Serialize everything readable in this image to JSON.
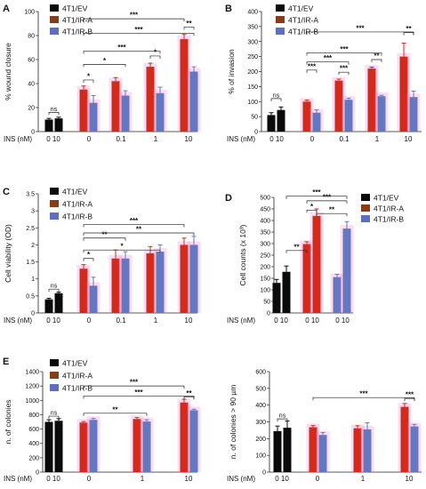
{
  "colors": {
    "ev": "#0a0a0a",
    "ira": "#d42a1c",
    "irb": "#6478c2",
    "ira_legend": "#8a3b14",
    "irb_legend": "#5c6fc0",
    "glow": "#ff7fd8"
  },
  "chart_data": [
    {
      "panel": "A",
      "type": "bar",
      "ylabel": "% wound closure",
      "ylim": [
        0,
        100
      ],
      "yticks": [
        0,
        20,
        40,
        60,
        80,
        100
      ],
      "xlabel_prefix": "INS (nM)",
      "legend": [
        "4T1/EV",
        "4T1/IR-A",
        "4T1/IR-B"
      ],
      "groups": [
        {
          "label": "0 10",
          "bars": [
            {
              "series": "4T1/EV",
              "value": 10,
              "err": 1
            },
            {
              "series": "4T1/EV",
              "value": 11,
              "err": 1
            }
          ]
        },
        {
          "label": "0",
          "bars": [
            {
              "series": "4T1/IR-A",
              "value": 35,
              "err": 3
            },
            {
              "series": "4T1/IR-B",
              "value": 24,
              "err": 6
            }
          ]
        },
        {
          "label": "0.1",
          "bars": [
            {
              "series": "4T1/IR-A",
              "value": 42,
              "err": 3
            },
            {
              "series": "4T1/IR-B",
              "value": 30,
              "err": 4
            }
          ]
        },
        {
          "label": "1",
          "bars": [
            {
              "series": "4T1/IR-A",
              "value": 54,
              "err": 3
            },
            {
              "series": "4T1/IR-B",
              "value": 32,
              "err": 5
            }
          ]
        },
        {
          "label": "10",
          "bars": [
            {
              "series": "4T1/IR-A",
              "value": 77,
              "err": 4
            },
            {
              "series": "4T1/IR-B",
              "value": 50,
              "err": 4
            }
          ]
        }
      ],
      "annotations": [
        "ns",
        "*",
        "*",
        "*",
        "***",
        "***",
        "***",
        "**"
      ]
    },
    {
      "panel": "B",
      "type": "bar",
      "ylabel": "% of invasion",
      "ylim": [
        0,
        400
      ],
      "yticks": [
        0,
        50,
        100,
        150,
        200,
        250,
        300,
        350,
        400
      ],
      "xlabel_prefix": "INS (nM)",
      "legend": [
        "4T1/EV",
        "4T1/IR-A",
        "4T1/IR-B"
      ],
      "groups": [
        {
          "label": "0 10",
          "bars": [
            {
              "series": "4T1/EV",
              "value": 55,
              "err": 8
            },
            {
              "series": "4T1/EV",
              "value": 72,
              "err": 10
            }
          ]
        },
        {
          "label": "0",
          "bars": [
            {
              "series": "4T1/IR-A",
              "value": 100,
              "err": 5
            },
            {
              "series": "4T1/IR-B",
              "value": 63,
              "err": 10
            }
          ]
        },
        {
          "label": "0.1",
          "bars": [
            {
              "series": "4T1/IR-A",
              "value": 170,
              "err": 5
            },
            {
              "series": "4T1/IR-B",
              "value": 106,
              "err": 5
            }
          ]
        },
        {
          "label": "1",
          "bars": [
            {
              "series": "4T1/IR-A",
              "value": 210,
              "err": 5
            },
            {
              "series": "4T1/IR-B",
              "value": 118,
              "err": 3
            }
          ]
        },
        {
          "label": "10",
          "bars": [
            {
              "series": "4T1/IR-A",
              "value": 250,
              "err": 45
            },
            {
              "series": "4T1/IR-B",
              "value": 115,
              "err": 20
            }
          ]
        }
      ],
      "annotations": [
        "ns",
        "***",
        "***",
        "***",
        "***",
        "**",
        "***",
        "**"
      ]
    },
    {
      "panel": "C",
      "type": "bar",
      "ylabel": "Cell viability (OD)",
      "ylim": [
        0,
        3.5
      ],
      "yticks": [
        0,
        0.5,
        1,
        1.5,
        2,
        2.5,
        3,
        3.5
      ],
      "xlabel_prefix": "INS (nM)",
      "legend": [
        "4T1/EV",
        "4T1/IR-A",
        "4T1/IR-B"
      ],
      "groups": [
        {
          "label": "0 10",
          "bars": [
            {
              "series": "4T1/EV",
              "value": 0.4,
              "err": 0.03
            },
            {
              "series": "4T1/EV",
              "value": 0.58,
              "err": 0.03
            }
          ]
        },
        {
          "label": "0",
          "bars": [
            {
              "series": "4T1/IR-A",
              "value": 1.3,
              "err": 0.12
            },
            {
              "series": "4T1/IR-B",
              "value": 0.8,
              "err": 0.25
            }
          ]
        },
        {
          "label": "0.1",
          "bars": [
            {
              "series": "4T1/IR-A",
              "value": 1.6,
              "err": 0.25
            },
            {
              "series": "4T1/IR-B",
              "value": 1.6,
              "err": 0.2
            }
          ]
        },
        {
          "label": "1",
          "bars": [
            {
              "series": "4T1/IR-A",
              "value": 1.75,
              "err": 0.2
            },
            {
              "series": "4T1/IR-B",
              "value": 1.8,
              "err": 0.2
            }
          ]
        },
        {
          "label": "10",
          "bars": [
            {
              "series": "4T1/IR-A",
              "value": 2.0,
              "err": 0.2
            },
            {
              "series": "4T1/IR-B",
              "value": 2.0,
              "err": 0.25
            }
          ]
        }
      ],
      "annotations": [
        "ns",
        "*",
        "*",
        "**",
        "**",
        "***"
      ]
    },
    {
      "panel": "D",
      "type": "bar",
      "ylabel": "Cell counts (x 10³)",
      "ylim": [
        0,
        500
      ],
      "yticks": [
        0,
        50,
        100,
        150,
        200,
        250,
        300,
        350,
        400,
        450,
        500
      ],
      "xlabel_prefix": "INS (nM)",
      "legend": [
        "4T1/EV",
        "4T1/IR-A",
        "4T1/IR-B"
      ],
      "groups": [
        {
          "label": "0 10",
          "bars": [
            {
              "series": "4T1/EV",
              "value": 130,
              "err": 15
            },
            {
              "series": "4T1/EV",
              "value": 178,
              "err": 25
            }
          ]
        },
        {
          "label": "0 10",
          "bars": [
            {
              "series": "4T1/IR-A",
              "value": 298,
              "err": 10
            },
            {
              "series": "4T1/IR-A",
              "value": 420,
              "err": 30
            }
          ]
        },
        {
          "label": "0 10",
          "bars": [
            {
              "series": "4T1/IR-B",
              "value": 155,
              "err": 12
            },
            {
              "series": "4T1/IR-B",
              "value": 365,
              "err": 30
            }
          ]
        }
      ],
      "annotations": [
        "**",
        "*",
        "**",
        "***",
        "***"
      ]
    },
    {
      "panel": "E",
      "type": "bar",
      "ylabel": "n. of colonies",
      "ylim": [
        0,
        1400
      ],
      "yticks": [
        0,
        200,
        400,
        600,
        800,
        1000,
        1200,
        1400
      ],
      "xlabel_prefix": "INS (nM)",
      "legend": [
        "4T1/EV",
        "4T1/IR-A",
        "4T1/IR-B"
      ],
      "groups": [
        {
          "label": "0 10",
          "bars": [
            {
              "series": "4T1/EV",
              "value": 700,
              "err": 30
            },
            {
              "series": "4T1/EV",
              "value": 715,
              "err": 30
            }
          ]
        },
        {
          "label": "0",
          "bars": [
            {
              "series": "4T1/IR-A",
              "value": 690,
              "err": 15
            },
            {
              "series": "4T1/IR-B",
              "value": 728,
              "err": 20
            }
          ]
        },
        {
          "label": "1",
          "bars": [
            {
              "series": "4T1/IR-A",
              "value": 740,
              "err": 20
            },
            {
              "series": "4T1/IR-B",
              "value": 705,
              "err": 25
            }
          ]
        },
        {
          "label": "10",
          "bars": [
            {
              "series": "4T1/IR-A",
              "value": 970,
              "err": 45
            },
            {
              "series": "4T1/IR-B",
              "value": 862,
              "err": 15
            }
          ]
        }
      ],
      "annotations": [
        "ns",
        "**",
        "***",
        "***",
        "**"
      ]
    },
    {
      "panel": "",
      "type": "bar",
      "ylabel": "n. of colonies > 90 µm",
      "ylim": [
        0,
        600
      ],
      "yticks": [
        0,
        100,
        200,
        300,
        400,
        500,
        600
      ],
      "xlabel_prefix": "INS (nM)",
      "legend": [],
      "groups": [
        {
          "label": "0 10",
          "bars": [
            {
              "series": "4T1/EV",
              "value": 245,
              "err": 30
            },
            {
              "series": "4T1/EV",
              "value": 265,
              "err": 40
            }
          ]
        },
        {
          "label": "0",
          "bars": [
            {
              "series": "4T1/IR-A",
              "value": 268,
              "err": 10
            },
            {
              "series": "4T1/IR-B",
              "value": 222,
              "err": 15
            }
          ]
        },
        {
          "label": "1",
          "bars": [
            {
              "series": "4T1/IR-A",
              "value": 262,
              "err": 15
            },
            {
              "series": "4T1/IR-B",
              "value": 255,
              "err": 40
            }
          ]
        },
        {
          "label": "10",
          "bars": [
            {
              "series": "4T1/IR-A",
              "value": 390,
              "err": 20
            },
            {
              "series": "4T1/IR-B",
              "value": 273,
              "err": 12
            }
          ]
        }
      ],
      "annotations": [
        "ns",
        "***",
        "***"
      ]
    }
  ]
}
